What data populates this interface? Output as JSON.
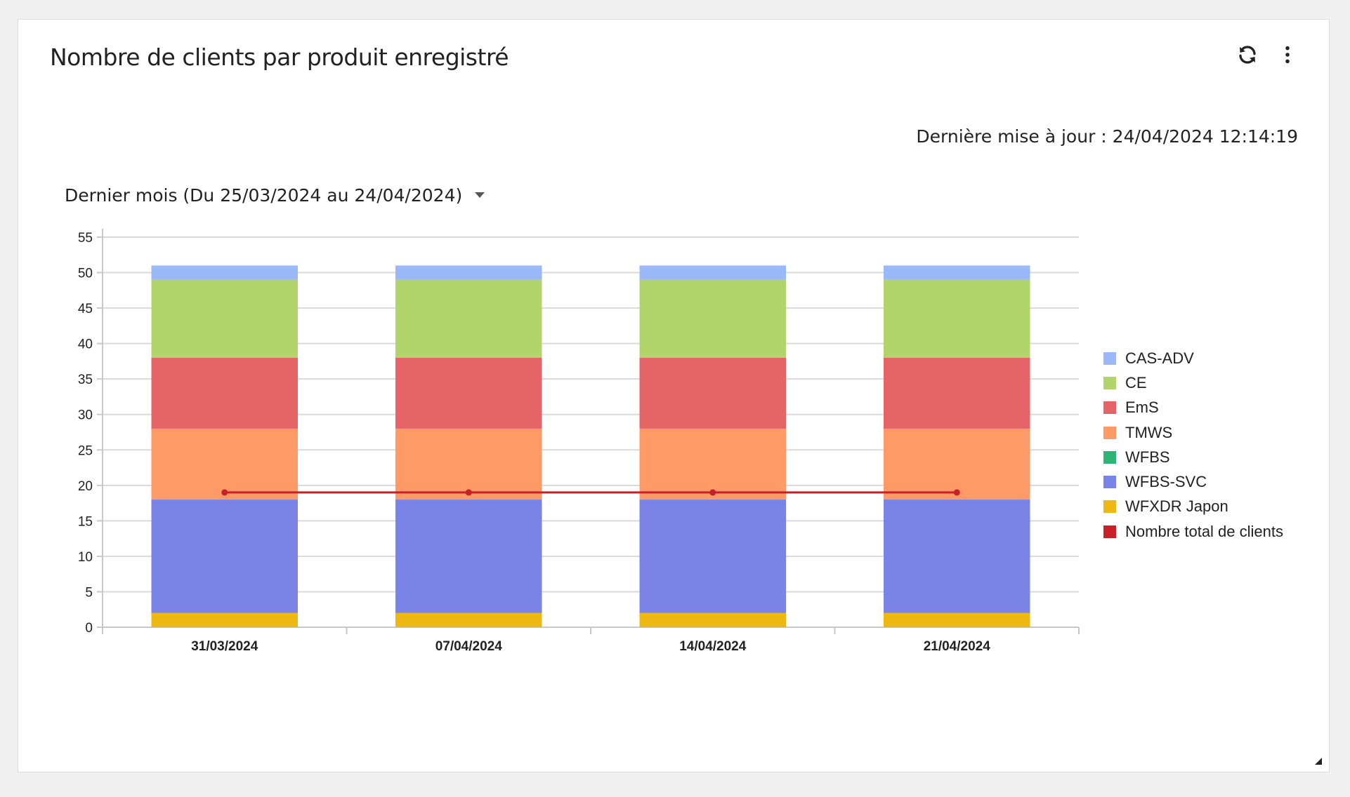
{
  "widget": {
    "title": "Nombre de clients par produit enregistré",
    "last_updated": "Dernière mise à jour : 24/04/2024 12:14:19",
    "period_label": "Dernier mois (Du 25/03/2024 au 24/04/2024)",
    "icons": {
      "refresh": "refresh-icon",
      "menu": "more-vertical-icon",
      "resize": "resize-handle-icon"
    }
  },
  "chart_data": {
    "type": "bar",
    "stacked": true,
    "title": "Nombre de clients par produit enregistré",
    "categories": [
      "31/03/2024",
      "07/04/2024",
      "14/04/2024",
      "21/04/2024"
    ],
    "ylim": [
      0,
      55
    ],
    "yticks": [
      0,
      5,
      10,
      15,
      20,
      25,
      30,
      35,
      40,
      45,
      50,
      55
    ],
    "grid": true,
    "legend_position": "right",
    "series": [
      {
        "name": "WFXDR Japon",
        "color": "#EDB811",
        "values": [
          2,
          2,
          2,
          2
        ]
      },
      {
        "name": "WFBS-SVC",
        "color": "#7A84E6",
        "values": [
          16,
          16,
          16,
          16
        ]
      },
      {
        "name": "WFBS",
        "color": "#2DB577",
        "values": [
          0,
          0,
          0,
          0
        ]
      },
      {
        "name": "TMWS",
        "color": "#FE9A66",
        "values": [
          10,
          10,
          10,
          10
        ]
      },
      {
        "name": "EmS",
        "color": "#E46468",
        "values": [
          10,
          10,
          10,
          10
        ]
      },
      {
        "name": "CE",
        "color": "#B1D56B",
        "values": [
          11,
          11,
          11,
          11
        ]
      },
      {
        "name": "CAS-ADV",
        "color": "#9BB8F8",
        "values": [
          2,
          2,
          2,
          2
        ]
      }
    ],
    "line_series": {
      "name": "Nombre total de clients",
      "color": "#C72026",
      "values": [
        19,
        19,
        19,
        19
      ]
    },
    "legend": [
      {
        "label": "CAS-ADV",
        "color": "#9BB8F8"
      },
      {
        "label": "CE",
        "color": "#B1D56B"
      },
      {
        "label": "EmS",
        "color": "#E46468"
      },
      {
        "label": "TMWS",
        "color": "#FE9A66"
      },
      {
        "label": "WFBS",
        "color": "#2DB577"
      },
      {
        "label": "WFBS-SVC",
        "color": "#7A84E6"
      },
      {
        "label": "WFXDR Japon",
        "color": "#EDB811"
      },
      {
        "label": "Nombre total de clients",
        "color": "#C72026"
      }
    ]
  }
}
